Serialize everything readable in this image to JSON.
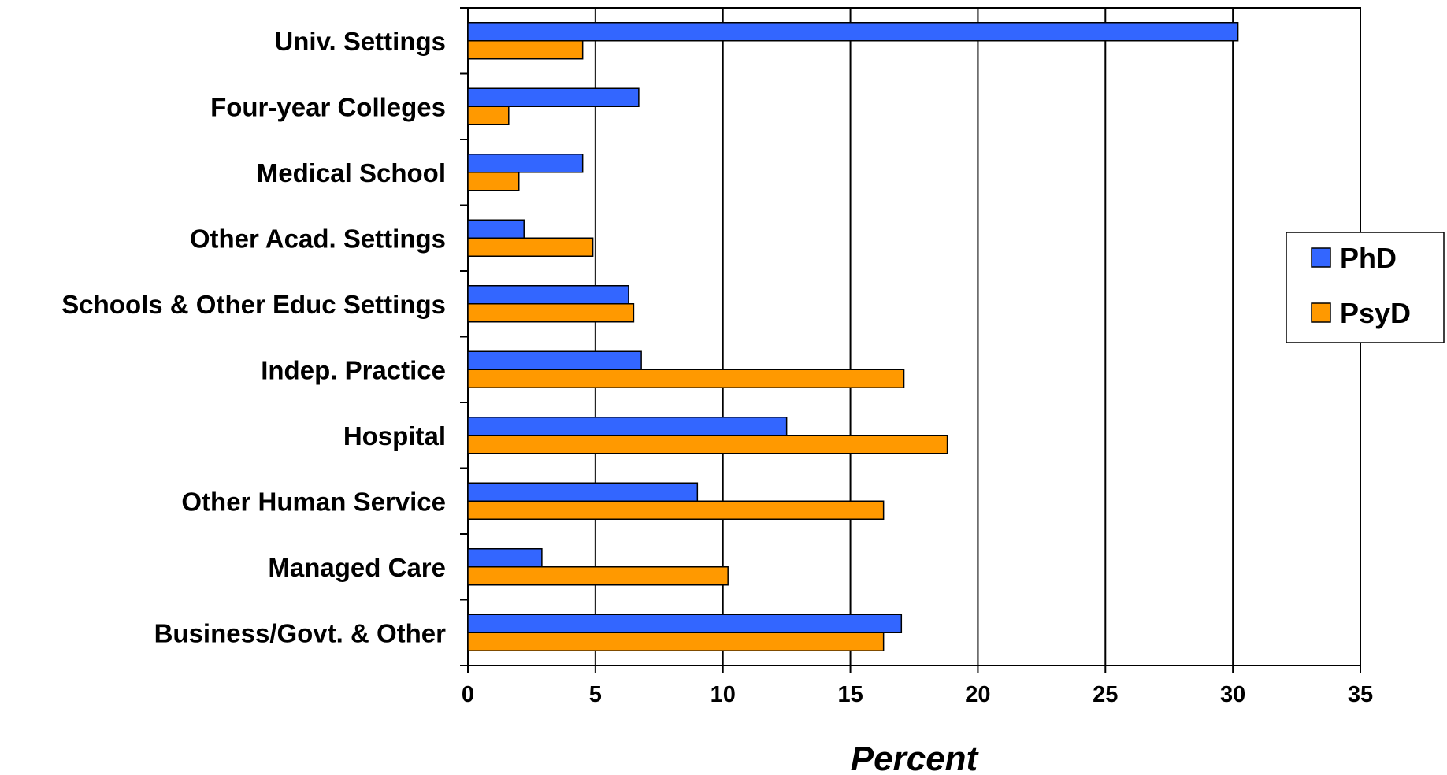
{
  "chart_data": {
    "type": "bar",
    "orientation": "horizontal",
    "categories": [
      "Univ. Settings",
      "Four-year Colleges",
      "Medical School",
      "Other Acad. Settings",
      "Schools & Other Educ Settings",
      "Indep. Practice",
      "Hospital",
      "Other Human Service",
      "Managed Care",
      "Business/Govt. & Other"
    ],
    "series": [
      {
        "name": "PhD",
        "color": "#3366FF",
        "values": [
          30.2,
          6.7,
          4.5,
          2.2,
          6.3,
          6.8,
          12.5,
          9.0,
          2.9,
          17.0
        ]
      },
      {
        "name": "PsyD",
        "color": "#FF9900",
        "values": [
          4.5,
          1.6,
          2.0,
          4.9,
          6.5,
          17.1,
          18.8,
          16.3,
          10.2,
          16.3
        ]
      }
    ],
    "xlabel": "Percent",
    "ylabel": "",
    "xlim": [
      0,
      35
    ],
    "xticks": [
      0,
      5,
      10,
      15,
      20,
      25,
      30,
      35
    ],
    "grid": "vertical",
    "legend_position": "right"
  }
}
